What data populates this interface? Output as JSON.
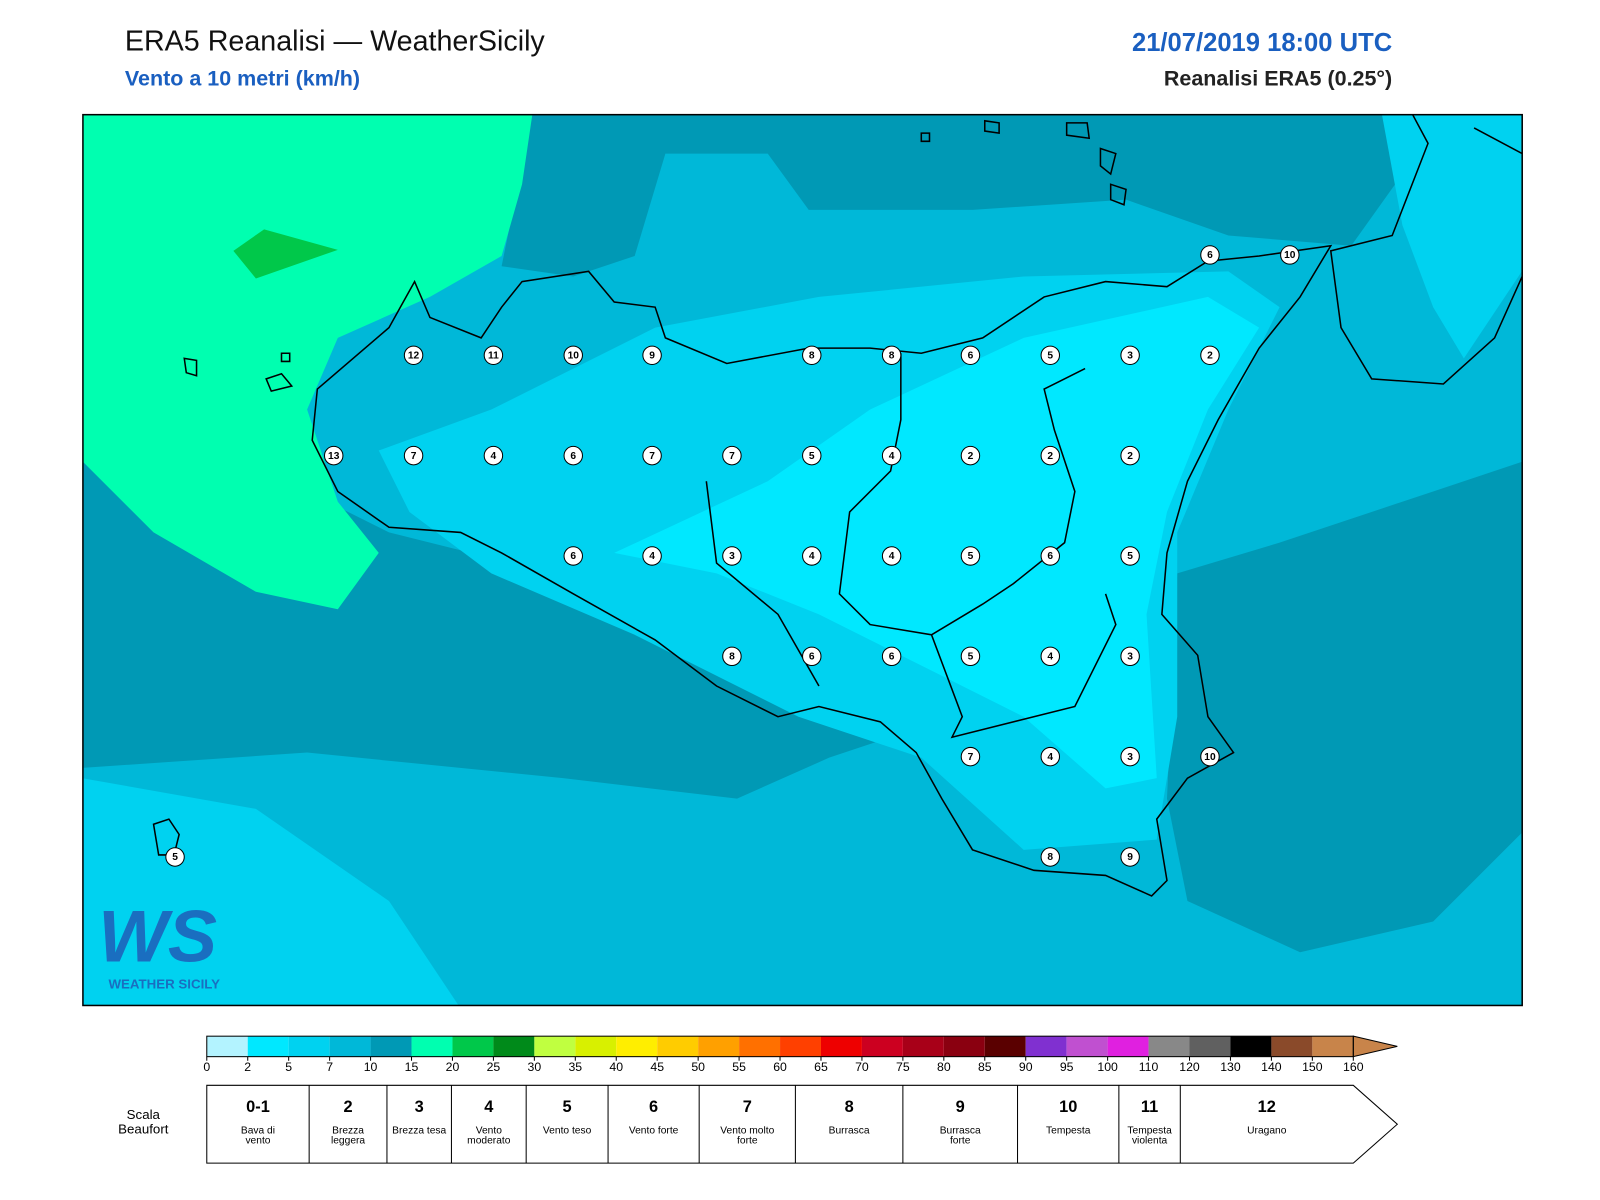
{
  "header": {
    "title": "ERA5 Reanalisi — WeatherSicily",
    "subtitle": "Vento a 10 metri (km/h)",
    "datetime": "21/07/2019 18:00 UTC",
    "source": "Reanalisi ERA5 (0.25°)"
  },
  "stations": {
    "values": [
      6,
      10,
      12,
      11,
      10,
      9,
      8,
      8,
      6,
      5,
      3,
      2,
      13,
      7,
      4,
      6,
      7,
      7,
      5,
      4,
      2,
      2,
      2,
      6,
      4,
      3,
      4,
      4,
      5,
      6,
      5,
      8,
      6,
      6,
      5,
      4,
      3,
      7,
      4,
      3,
      10,
      8,
      9,
      5
    ]
  },
  "logo": {
    "mark": "WS",
    "text": "WEATHER SICILY"
  },
  "colorbar": {
    "ticks": [
      0,
      2,
      5,
      7,
      10,
      15,
      20,
      25,
      30,
      35,
      40,
      45,
      50,
      55,
      60,
      65,
      70,
      75,
      80,
      85,
      90,
      95,
      100,
      110,
      120,
      130,
      140,
      150,
      160
    ],
    "colors": [
      "#b3f3ff",
      "#00e8ff",
      "#00d2f0",
      "#00b8d8",
      "#0099b5",
      "#00ffb0",
      "#00c84a",
      "#008a1a",
      "#c0ff40",
      "#d8f000",
      "#ffee00",
      "#ffcc00",
      "#ffa000",
      "#ff7000",
      "#ff4000",
      "#ee0000",
      "#cc0020",
      "#a80018",
      "#8a0010",
      "#5a0000",
      "#8030d0",
      "#c050d0",
      "#e020e0",
      "#888888",
      "#606060",
      "#000000",
      "#8a4a2a",
      "#c8844a"
    ]
  },
  "beaufort": {
    "label": "Scala Beaufort",
    "scale": [
      {
        "force": "0-1",
        "desc": "Bava di vento"
      },
      {
        "force": "2",
        "desc": "Brezza leggera"
      },
      {
        "force": "3",
        "desc": "Brezza tesa"
      },
      {
        "force": "4",
        "desc": "Vento moderato"
      },
      {
        "force": "5",
        "desc": "Vento teso"
      },
      {
        "force": "6",
        "desc": "Vento forte"
      },
      {
        "force": "7",
        "desc": "Vento molto forte"
      },
      {
        "force": "8",
        "desc": "Burrasca"
      },
      {
        "force": "9",
        "desc": "Burrasca forte"
      },
      {
        "force": "10",
        "desc": "Tempesta"
      },
      {
        "force": "11",
        "desc": "Tempesta violenta"
      },
      {
        "force": "12",
        "desc": "Uragano"
      }
    ]
  }
}
